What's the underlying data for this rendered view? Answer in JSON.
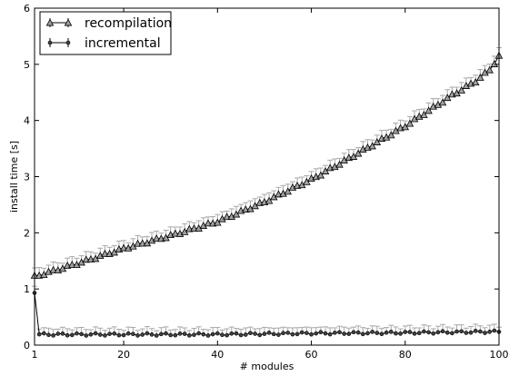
{
  "chart_data": {
    "type": "line",
    "title": "",
    "xlabel": "# modules",
    "ylabel": "install time [s]",
    "xlim": [
      1,
      100
    ],
    "ylim": [
      0,
      6
    ],
    "xticks": [
      1,
      20,
      40,
      60,
      80,
      100
    ],
    "yticks": [
      0,
      1,
      2,
      3,
      4,
      5,
      6
    ],
    "grid": false,
    "legend_position": "top-left",
    "series": [
      {
        "name": "recompilation",
        "marker": "triangle",
        "marker_color": "#a0a0a0",
        "line_color": "#000000",
        "errorbar_color": "#a8a8a8",
        "x_range": [
          1,
          100
        ],
        "anchors": [
          [
            1,
            1.22
          ],
          [
            10,
            1.45
          ],
          [
            20,
            1.72
          ],
          [
            30,
            1.95
          ],
          [
            40,
            2.2
          ],
          [
            50,
            2.55
          ],
          [
            60,
            2.95
          ],
          [
            70,
            3.42
          ],
          [
            80,
            3.9
          ],
          [
            90,
            4.45
          ],
          [
            95,
            4.7
          ],
          [
            98,
            4.9
          ],
          [
            100,
            5.15
          ]
        ],
        "error": 0.12
      },
      {
        "name": "incremental",
        "marker": "circle",
        "marker_color": "#404040",
        "line_color": "#000000",
        "errorbar_color": "#a8a8a8",
        "x_range": [
          1,
          100
        ],
        "anchors": [
          [
            1,
            0.95
          ],
          [
            2,
            0.19
          ],
          [
            40,
            0.19
          ],
          [
            60,
            0.21
          ],
          [
            80,
            0.22
          ],
          [
            100,
            0.24
          ]
        ],
        "error": 0.1
      }
    ]
  }
}
